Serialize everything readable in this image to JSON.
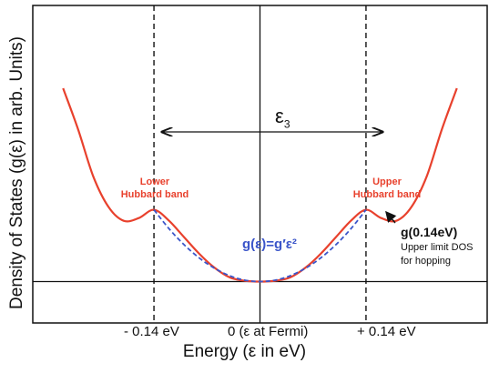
{
  "chart_data": {
    "type": "line",
    "xlabel": "Energy (ε  in eV)",
    "ylabel": "Density of States (g(ε) in arb. Units)",
    "xlim": [
      -0.3,
      0.3
    ],
    "ylim": [
      -0.15,
      1.0
    ],
    "x_tick_labels": [
      "- 0.14 eV",
      "0 (ε at Fermi)",
      "+ 0.14 eV"
    ],
    "x_tick_values": [
      -0.14,
      0.0,
      0.14
    ],
    "series": [
      {
        "color": "#e8412d",
        "style": "solid",
        "x": [
          -0.26,
          -0.24,
          -0.22,
          -0.2,
          -0.18,
          -0.16,
          -0.14,
          -0.12,
          -0.1,
          -0.08,
          -0.06,
          -0.04,
          -0.02,
          0.0,
          0.02,
          0.04,
          0.06,
          0.08,
          0.1,
          0.12,
          0.14,
          0.16,
          0.18,
          0.2,
          0.22,
          0.24,
          0.26
        ],
        "y": [
          0.7,
          0.55,
          0.38,
          0.27,
          0.22,
          0.23,
          0.26,
          0.22,
          0.16,
          0.1,
          0.05,
          0.015,
          0.003,
          0.0,
          0.003,
          0.015,
          0.05,
          0.1,
          0.16,
          0.22,
          0.26,
          0.23,
          0.22,
          0.27,
          0.38,
          0.55,
          0.7
        ]
      },
      {
        "color": "#3b55c9",
        "style": "dashed",
        "x": [
          -0.14,
          -0.12,
          -0.1,
          -0.08,
          -0.06,
          -0.04,
          -0.02,
          0.0,
          0.02,
          0.04,
          0.06,
          0.08,
          0.1,
          0.12,
          0.14
        ],
        "y": [
          0.26,
          0.191,
          0.133,
          0.085,
          0.048,
          0.021,
          0.005,
          0.0,
          0.005,
          0.021,
          0.048,
          0.085,
          0.133,
          0.191,
          0.26
        ]
      }
    ],
    "reference_lines": {
      "vertical_dashed": [
        -0.14,
        0.14
      ],
      "vertical_solid": [
        0.0
      ],
      "horizontal_solid": [
        0.0
      ]
    },
    "annotations": {
      "epsilon_symbol": "ε",
      "epsilon_sub": "3",
      "lower_band": [
        "Lower",
        "Hubbard band"
      ],
      "upper_band": [
        "Upper",
        "Hubbard band"
      ],
      "equation": "g(ε)=g′ε²",
      "g_value": "g(0.14eV)",
      "upper_limit": [
        "Upper limit DOS",
        "for hopping"
      ]
    }
  }
}
